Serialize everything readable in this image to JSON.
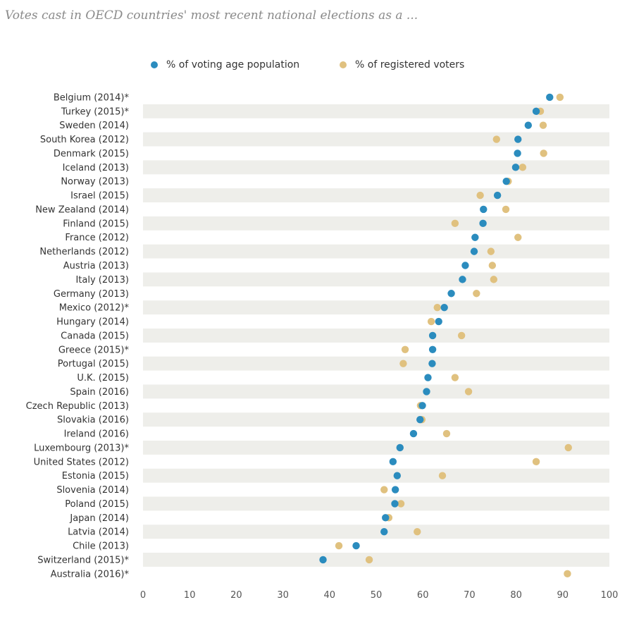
{
  "chart_data": {
    "type": "scatter",
    "title": "Votes cast in OECD countries' most recent national elections as a ...",
    "categories": [
      "Belgium (2014)*",
      "Turkey (2015)*",
      "Sweden (2014)",
      "South Korea (2012)",
      "Denmark (2015)",
      "Iceland (2013)",
      "Norway (2013)",
      "Israel (2015)",
      "New Zealand (2014)",
      "Finland (2015)",
      "France (2012)",
      "Netherlands (2012)",
      "Austria (2013)",
      "Italy (2013)",
      "Germany (2013)",
      "Mexico (2012)*",
      "Hungary (2014)",
      "Canada (2015)",
      "Greece (2015)*",
      "Portugal (2015)",
      "U.K. (2015)",
      "Spain (2016)",
      "Czech Republic (2013)",
      "Slovakia (2016)",
      "Ireland (2016)",
      "Luxembourg (2013)*",
      "United States (2012)",
      "Estonia (2015)",
      "Slovenia (2014)",
      "Poland (2015)",
      "Japan (2014)",
      "Latvia (2014)",
      "Chile (2013)",
      "Switzerland (2015)*",
      "Australia (2016)*"
    ],
    "series": [
      {
        "name": "% of voting age population",
        "color": "#2b8cbe",
        "values": [
          87.2,
          84.3,
          82.6,
          80.4,
          80.3,
          79.9,
          77.9,
          76.0,
          73.0,
          72.9,
          71.2,
          71.0,
          69.1,
          68.5,
          66.1,
          64.6,
          63.4,
          62.1,
          62.1,
          62.0,
          61.1,
          60.8,
          59.9,
          59.4,
          58.0,
          55.1,
          53.6,
          54.5,
          54.1,
          54.0,
          52.0,
          51.7,
          45.7,
          38.6,
          91.0
        ]
      },
      {
        "name": "% of registered voters",
        "color": "#e0c17f",
        "values": [
          89.4,
          85.2,
          85.8,
          75.8,
          85.9,
          81.4,
          78.3,
          72.3,
          77.8,
          66.9,
          80.4,
          74.6,
          74.9,
          75.2,
          71.5,
          63.1,
          61.8,
          68.3,
          56.2,
          55.8,
          66.9,
          69.8,
          59.5,
          59.8,
          65.1,
          91.2,
          84.3,
          64.2,
          51.7,
          55.3,
          52.7,
          58.8,
          42.0,
          48.5,
          91.0
        ]
      }
    ],
    "xlim": [
      0,
      100
    ],
    "xticks": [
      "0",
      "10",
      "20",
      "30",
      "40",
      "50",
      "60",
      "70",
      "80",
      "90",
      "100"
    ],
    "xlabel": "",
    "ylabel": "",
    "grid": "alternating row bands",
    "legend_position": "top-center"
  }
}
